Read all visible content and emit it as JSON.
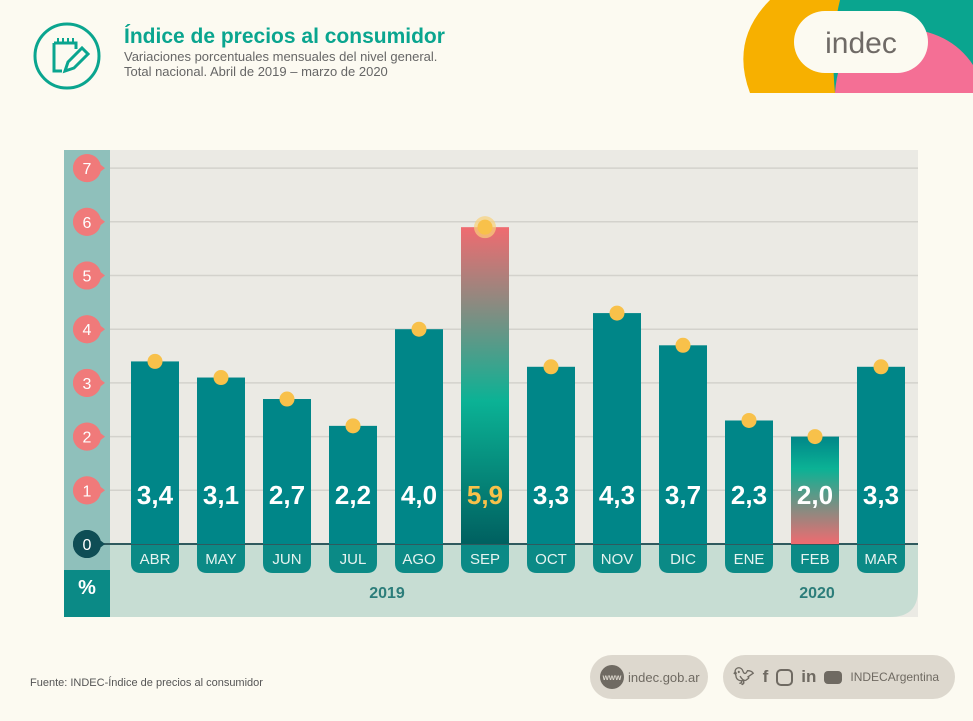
{
  "header": {
    "title": "Índice de precios al consumidor",
    "subtitle_line1": "Variaciones porcentuales mensuales del nivel general.",
    "subtitle_line2": "Total nacional. Abril de 2019 – marzo de 2020",
    "icon": "notepad-pencil-icon"
  },
  "logo": {
    "text": "indec",
    "colors": [
      "#f7b000",
      "#0aa58f",
      "#f46f95"
    ]
  },
  "chart_data": {
    "type": "bar",
    "categories": [
      "ABR",
      "MAY",
      "JUN",
      "JUL",
      "AGO",
      "SEP",
      "OCT",
      "NOV",
      "DIC",
      "ENE",
      "FEB",
      "MAR"
    ],
    "values": [
      3.4,
      3.1,
      2.7,
      2.2,
      4.0,
      5.9,
      3.3,
      4.3,
      3.7,
      2.3,
      2.0,
      3.3
    ],
    "data_labels": [
      "3,4",
      "3,1",
      "2,7",
      "2,2",
      "4,0",
      "5,9",
      "3,3",
      "4,3",
      "3,7",
      "2,3",
      "2,0",
      "3,3"
    ],
    "year_labels": [
      "2019",
      "2020"
    ],
    "ylabel": "%",
    "yticks": [
      "0",
      "1",
      "2",
      "3",
      "4",
      "5",
      "6",
      "7"
    ],
    "ylim": [
      0,
      7
    ],
    "grid": true,
    "highlight": {
      "max": "SEP",
      "min": "FEB"
    },
    "colors": {
      "bar": "#008688",
      "highlight_top": "#f06b70",
      "marker": "#f8c14a",
      "tick_badge": "#f07a7a",
      "highlight_label": "#f8c14a"
    }
  },
  "footer": {
    "source": "Fuente: INDEC-Índice de precios al consumidor",
    "web_badge": "www",
    "website": "indec.gob.ar",
    "social_handle": "INDECArgentina",
    "social_icons": [
      "twitter-icon",
      "facebook-icon",
      "instagram-icon",
      "linkedin-icon",
      "youtube-icon"
    ]
  }
}
